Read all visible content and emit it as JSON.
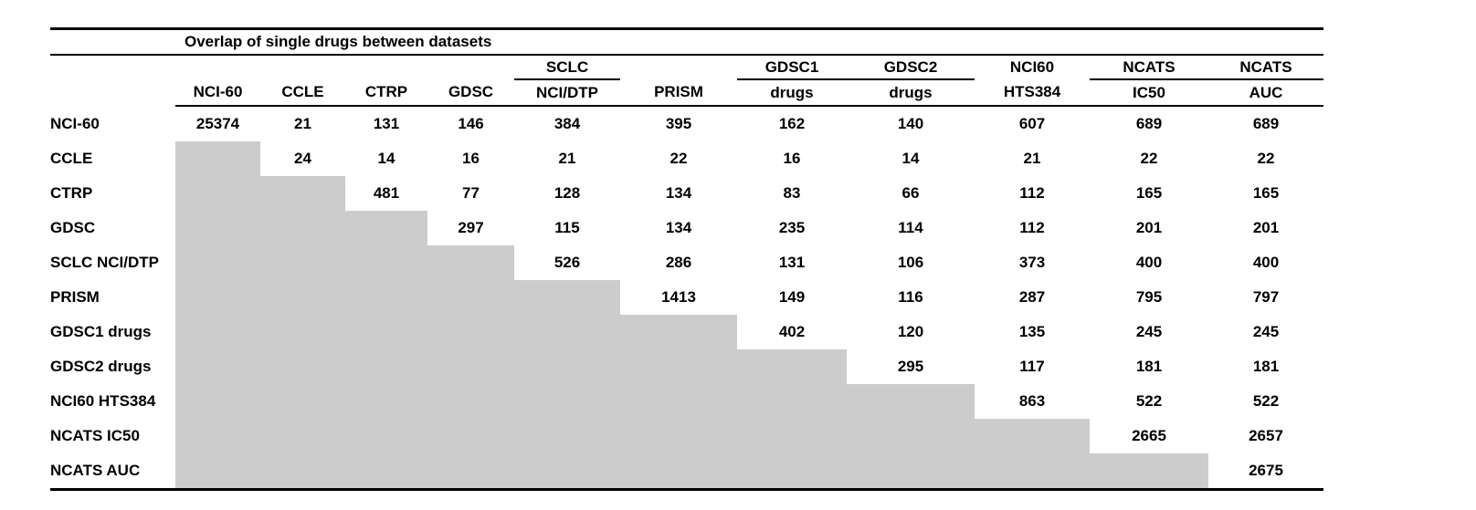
{
  "title": "Overlap of single drugs between datasets",
  "colors": {
    "shaded_cell": "#cccccc",
    "rule": "#000000",
    "text": "#000000",
    "background": "#ffffff"
  },
  "table": {
    "columns": [
      {
        "top": "",
        "bottom": "NCI-60",
        "underline": false
      },
      {
        "top": "",
        "bottom": "CCLE",
        "underline": false
      },
      {
        "top": "",
        "bottom": "CTRP",
        "underline": false
      },
      {
        "top": "",
        "bottom": "GDSC",
        "underline": false
      },
      {
        "top": "SCLC",
        "bottom": "NCI/DTP",
        "underline": true
      },
      {
        "top": "",
        "bottom": "PRISM",
        "underline": false
      },
      {
        "top": "GDSC1",
        "bottom": "drugs",
        "underline": true
      },
      {
        "top": "GDSC2",
        "bottom": "drugs",
        "underline": true
      },
      {
        "top": "NCI60",
        "bottom": "HTS384",
        "underline": false
      },
      {
        "top": "NCATS",
        "bottom": "IC50",
        "underline": true
      },
      {
        "top": "NCATS",
        "bottom": "AUC",
        "underline": true
      }
    ],
    "rows": [
      {
        "label": "NCI-60",
        "values": [
          25374,
          21,
          131,
          146,
          384,
          395,
          162,
          140,
          607,
          689,
          689
        ]
      },
      {
        "label": "CCLE",
        "values": [
          null,
          24,
          14,
          16,
          21,
          22,
          16,
          14,
          21,
          22,
          22
        ]
      },
      {
        "label": "CTRP",
        "values": [
          null,
          null,
          481,
          77,
          128,
          134,
          83,
          66,
          112,
          165,
          165
        ]
      },
      {
        "label": "GDSC",
        "values": [
          null,
          null,
          null,
          297,
          115,
          134,
          235,
          114,
          112,
          201,
          201
        ]
      },
      {
        "label": "SCLC NCI/DTP",
        "values": [
          null,
          null,
          null,
          null,
          526,
          286,
          131,
          106,
          373,
          400,
          400
        ]
      },
      {
        "label": "PRISM",
        "values": [
          null,
          null,
          null,
          null,
          null,
          1413,
          149,
          116,
          287,
          795,
          797
        ]
      },
      {
        "label": "GDSC1 drugs",
        "values": [
          null,
          null,
          null,
          null,
          null,
          null,
          402,
          120,
          135,
          245,
          245
        ]
      },
      {
        "label": "GDSC2 drugs",
        "values": [
          null,
          null,
          null,
          null,
          null,
          null,
          null,
          295,
          117,
          181,
          181
        ]
      },
      {
        "label": "NCI60 HTS384",
        "values": [
          null,
          null,
          null,
          null,
          null,
          null,
          null,
          null,
          863,
          522,
          522
        ]
      },
      {
        "label": "NCATS IC50",
        "values": [
          null,
          null,
          null,
          null,
          null,
          null,
          null,
          null,
          null,
          2665,
          2657
        ]
      },
      {
        "label": "NCATS AUC",
        "values": [
          null,
          null,
          null,
          null,
          null,
          null,
          null,
          null,
          null,
          null,
          2675
        ]
      }
    ]
  },
  "chart_data": {
    "type": "table",
    "title": "Overlap of single drugs between datasets",
    "row_labels": [
      "NCI-60",
      "CCLE",
      "CTRP",
      "GDSC",
      "SCLC NCI/DTP",
      "PRISM",
      "GDSC1 drugs",
      "GDSC2 drugs",
      "NCI60 HTS384",
      "NCATS IC50",
      "NCATS AUC"
    ],
    "column_labels": [
      "NCI-60",
      "CCLE",
      "CTRP",
      "GDSC",
      "SCLC NCI/DTP",
      "PRISM",
      "GDSC1 drugs",
      "GDSC2 drugs",
      "NCI60 HTS384",
      "NCATS IC50",
      "NCATS AUC"
    ],
    "matrix_upper_triangle": [
      [
        25374,
        21,
        131,
        146,
        384,
        395,
        162,
        140,
        607,
        689,
        689
      ],
      [
        null,
        24,
        14,
        16,
        21,
        22,
        16,
        14,
        21,
        22,
        22
      ],
      [
        null,
        null,
        481,
        77,
        128,
        134,
        83,
        66,
        112,
        165,
        165
      ],
      [
        null,
        null,
        null,
        297,
        115,
        134,
        235,
        114,
        112,
        201,
        201
      ],
      [
        null,
        null,
        null,
        null,
        526,
        286,
        131,
        106,
        373,
        400,
        400
      ],
      [
        null,
        null,
        null,
        null,
        null,
        1413,
        149,
        116,
        287,
        795,
        797
      ],
      [
        null,
        null,
        null,
        null,
        null,
        null,
        402,
        120,
        135,
        245,
        245
      ],
      [
        null,
        null,
        null,
        null,
        null,
        null,
        null,
        295,
        117,
        181,
        181
      ],
      [
        null,
        null,
        null,
        null,
        null,
        null,
        null,
        null,
        863,
        522,
        522
      ],
      [
        null,
        null,
        null,
        null,
        null,
        null,
        null,
        null,
        null,
        2665,
        2657
      ],
      [
        null,
        null,
        null,
        null,
        null,
        null,
        null,
        null,
        null,
        null,
        2675
      ]
    ],
    "shading": "lower triangle shaded gray (#cccccc)"
  }
}
